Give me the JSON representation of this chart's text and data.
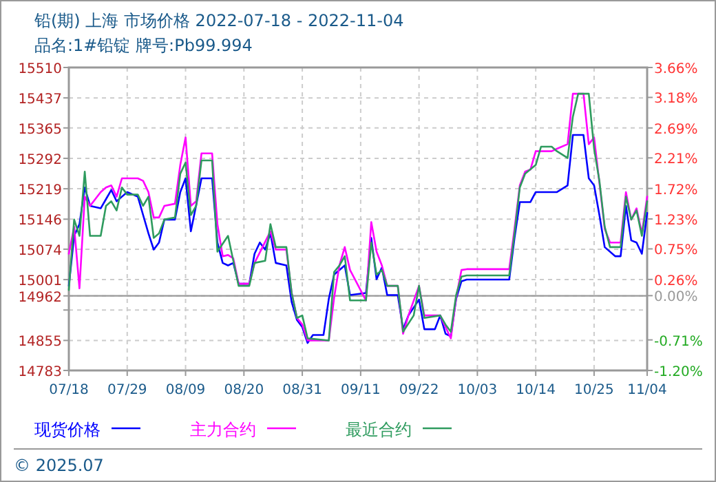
{
  "chart_data": {
    "type": "line",
    "title": "铅(期) 上海 市场价格 2022-07-18 - 2022-11-04",
    "subtitle": "品名:1#铅锭 牌号:Pb99.994",
    "xlim": [
      "--07-18",
      "--11-04"
    ],
    "xticks": [
      {
        "value": "--07-18",
        "label": "07/18"
      },
      {
        "value": "--07-29",
        "label": "07/29"
      },
      {
        "value": "--08-09",
        "label": "08/09"
      },
      {
        "value": "--08-20",
        "label": "08/20"
      },
      {
        "value": "--08-31",
        "label": "08/31"
      },
      {
        "value": "--09-11",
        "label": "09/11"
      },
      {
        "value": "--09-22",
        "label": "09/22"
      },
      {
        "value": "--10-03",
        "label": "10/03"
      },
      {
        "value": "--10-14",
        "label": "10/14"
      },
      {
        "value": "--10-25",
        "label": "10/25"
      },
      {
        "value": "--11-04",
        "label": "11/04"
      }
    ],
    "ylim": [
      14783,
      15510
    ],
    "yticks": [
      14783,
      14855,
      {
        "value": 14928,
        "label": null
      },
      14962,
      15001,
      15074,
      15146,
      15219,
      15292,
      15365,
      15437,
      15510
    ],
    "y2lim": [
      -1.2,
      3.66
    ],
    "y2ticks": [
      {
        "value": -1.2,
        "label": "-1.20%"
      },
      {
        "value": -0.71,
        "label": "-0.71%"
      },
      {
        "value": 0,
        "label": "0.00%"
      },
      {
        "value": 0.26,
        "label": "0.26%"
      },
      {
        "value": 0.75,
        "label": "0.75%"
      },
      {
        "value": 1.23,
        "label": "1.23%"
      },
      {
        "value": 1.72,
        "label": "1.72%"
      },
      {
        "value": 2.21,
        "label": "2.21%"
      },
      {
        "value": 2.69,
        "label": "2.69%"
      },
      {
        "value": 3.18,
        "label": "3.18%"
      },
      {
        "value": 3.66,
        "label": "3.66%"
      }
    ],
    "ref_lines": [
      {
        "axis": "y",
        "value": 14962,
        "color": "#999999"
      }
    ],
    "grid": true,
    "legend": "bottom",
    "line_style": "solid",
    "annotations": [
      "© 2025.07"
    ],
    "series": [
      {
        "name": "现货价格",
        "color": "#0000ff",
        "x": [
          "--07-18",
          "--07-19",
          "--07-20",
          "--07-21",
          "--07-22",
          "--07-24",
          "--07-25",
          "--07-26",
          "--07-27",
          "--07-28",
          "--07-29",
          "--07-31",
          "--08-01",
          "--08-02",
          "--08-03",
          "--08-04",
          "--08-05",
          "--08-07",
          "--08-08",
          "--08-09",
          "--08-10",
          "--08-11",
          "--08-12",
          "--08-14",
          "--08-15",
          "--08-16",
          "--08-17",
          "--08-18",
          "--08-19",
          "--08-21",
          "--08-22",
          "--08-23",
          "--08-24",
          "--08-25",
          "--08-26",
          "--08-28",
          "--08-29",
          "--08-30",
          "--08-31",
          "--09-01",
          "--09-02",
          "--09-04",
          "--09-05",
          "--09-06",
          "--09-08",
          "--09-09",
          "--09-12",
          "--09-13",
          "--09-14",
          "--09-15",
          "--09-16",
          "--09-18",
          "--09-19",
          "--09-20",
          "--09-22",
          "--09-23",
          "--09-25",
          "--09-26",
          "--09-27",
          "--09-28",
          "--09-29",
          "--09-30",
          "--10-01",
          "--10-09",
          "--10-10",
          "--10-11",
          "--10-13",
          "--10-14",
          "--10-18",
          "--10-20",
          "--10-21",
          "--10-23",
          "--10-24",
          "--10-25",
          "--10-26",
          "--10-27",
          "--10-29",
          "--10-30",
          "--10-31",
          "--11-01",
          "--11-02",
          "--11-03",
          "--11-04"
        ],
        "values": [
          14986,
          15106,
          15134,
          15222,
          15178,
          15172,
          15194,
          15216,
          15189,
          15200,
          15211,
          15200,
          15156,
          15112,
          15073,
          15090,
          15145,
          15145,
          15211,
          15244,
          15117,
          15180,
          15244,
          15244,
          15090,
          15041,
          15035,
          15041,
          14991,
          14991,
          15063,
          15090,
          15073,
          15112,
          15041,
          15035,
          14947,
          14904,
          14887,
          14849,
          14868,
          14868,
          14955,
          15013,
          15035,
          14964,
          14969,
          15101,
          15002,
          15030,
          14964,
          14964,
          14882,
          14915,
          14953,
          14882,
          14882,
          14915,
          14871,
          14865,
          14955,
          14997,
          15001,
          15001,
          15101,
          15187,
          15187,
          15211,
          15211,
          15227,
          15348,
          15348,
          15244,
          15227,
          15156,
          15079,
          15057,
          15057,
          15178,
          15095,
          15090,
          15063,
          15161
        ]
      },
      {
        "name": "主力合约",
        "color": "#ff00ff",
        "x": [
          "--07-18",
          "--07-19",
          "--07-20",
          "--07-21",
          "--07-22",
          "--07-24",
          "--07-25",
          "--07-26",
          "--07-27",
          "--07-28",
          "--07-31",
          "--08-01",
          "--08-02",
          "--08-03",
          "--08-04",
          "--08-05",
          "--08-07",
          "--08-08",
          "--08-09",
          "--08-10",
          "--08-11",
          "--08-12",
          "--08-14",
          "--08-15",
          "--08-16",
          "--08-17",
          "--08-18",
          "--08-19",
          "--08-21",
          "--08-22",
          "--08-25",
          "--08-26",
          "--08-28",
          "--08-29",
          "--08-30",
          "--08-31",
          "--09-01",
          "--09-05",
          "--09-06",
          "--09-07",
          "--09-08",
          "--09-09",
          "--09-12",
          "--09-13",
          "--09-14",
          "--09-15",
          "--09-16",
          "--09-18",
          "--09-19",
          "--09-20",
          "--09-22",
          "--09-23",
          "--09-26",
          "--09-27",
          "--09-28",
          "--09-29",
          "--09-30",
          "--10-01",
          "--10-09",
          "--10-10",
          "--10-11",
          "--10-12",
          "--10-13",
          "--10-14",
          "--10-17",
          "--10-18",
          "--10-20",
          "--10-21",
          "--10-23",
          "--10-24",
          "--10-25",
          "--10-26",
          "--10-27",
          "--10-28",
          "--10-30",
          "--10-31",
          "--11-01",
          "--11-02",
          "--11-03",
          "--11-04"
        ],
        "values": [
          15063,
          15128,
          14980,
          15200,
          15178,
          15211,
          15222,
          15227,
          15200,
          15244,
          15244,
          15238,
          15211,
          15150,
          15150,
          15178,
          15183,
          15276,
          15342,
          15178,
          15189,
          15304,
          15304,
          15134,
          15057,
          15060,
          15052,
          14991,
          14991,
          15041,
          15117,
          15073,
          15073,
          14969,
          14909,
          14893,
          14855,
          14855,
          14958,
          15035,
          15079,
          15024,
          14951,
          15139,
          15068,
          15035,
          14986,
          14986,
          14871,
          14915,
          14986,
          14915,
          14915,
          14887,
          14860,
          14958,
          15024,
          15026,
          15026,
          15123,
          15227,
          15260,
          15265,
          15309,
          15309,
          15315,
          15326,
          15447,
          15447,
          15326,
          15342,
          15233,
          15123,
          15090,
          15090,
          15211,
          15145,
          15172,
          15112,
          15200
        ]
      },
      {
        "name": "最近合约",
        "color": "#2e9b5e",
        "x": [
          "--07-18",
          "--07-19",
          "--07-20",
          "--07-21",
          "--07-22",
          "--07-24",
          "--07-25",
          "--07-26",
          "--07-27",
          "--07-28",
          "--07-29",
          "--07-31",
          "--08-01",
          "--08-02",
          "--08-03",
          "--08-04",
          "--08-05",
          "--08-07",
          "--08-08",
          "--08-09",
          "--08-10",
          "--08-11",
          "--08-12",
          "--08-14",
          "--08-15",
          "--08-17",
          "--08-18",
          "--08-19",
          "--08-21",
          "--08-22",
          "--08-24",
          "--08-25",
          "--08-26",
          "--08-28",
          "--08-29",
          "--08-30",
          "--08-31",
          "--09-01",
          "--09-05",
          "--09-06",
          "--09-07",
          "--09-08",
          "--09-09",
          "--09-12",
          "--09-13",
          "--09-14",
          "--09-15",
          "--09-16",
          "--09-18",
          "--09-19",
          "--09-21",
          "--09-22",
          "--09-23",
          "--09-26",
          "--09-27",
          "--09-28",
          "--09-29",
          "--09-30",
          "--10-01",
          "--10-09",
          "--10-10",
          "--10-11",
          "--10-12",
          "--10-14",
          "--10-15",
          "--10-17",
          "--10-18",
          "--10-20",
          "--10-21",
          "--10-22",
          "--10-24",
          "--10-25",
          "--10-26",
          "--10-27",
          "--10-28",
          "--10-30",
          "--10-31",
          "--11-01",
          "--11-02",
          "--11-03",
          "--11-04"
        ],
        "values": [
          14976,
          15145,
          15106,
          15260,
          15106,
          15106,
          15178,
          15189,
          15167,
          15222,
          15205,
          15205,
          15178,
          15200,
          15101,
          15112,
          15145,
          15150,
          15255,
          15282,
          15156,
          15178,
          15287,
          15287,
          15068,
          15106,
          15046,
          14986,
          14986,
          15041,
          15046,
          15134,
          15079,
          15079,
          14969,
          14909,
          14915,
          14860,
          14855,
          15019,
          15035,
          15057,
          14951,
          14951,
          15090,
          15013,
          15024,
          14986,
          14986,
          14876,
          14915,
          14986,
          14909,
          14915,
          14893,
          14876,
          14964,
          15008,
          15011,
          15011,
          15112,
          15222,
          15255,
          15276,
          15320,
          15320,
          15309,
          15293,
          15392,
          15447,
          15447,
          15315,
          15238,
          15128,
          15079,
          15079,
          15200,
          15145,
          15167,
          15106,
          15189
        ]
      }
    ]
  }
}
